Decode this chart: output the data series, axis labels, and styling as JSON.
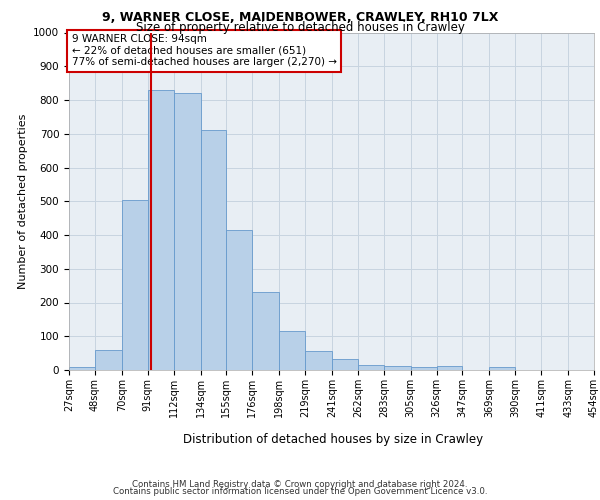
{
  "title1": "9, WARNER CLOSE, MAIDENBOWER, CRAWLEY, RH10 7LX",
  "title2": "Size of property relative to detached houses in Crawley",
  "xlabel": "Distribution of detached houses by size in Crawley",
  "ylabel": "Number of detached properties",
  "footer1": "Contains HM Land Registry data © Crown copyright and database right 2024.",
  "footer2": "Contains public sector information licensed under the Open Government Licence v3.0.",
  "annotation_line1": "9 WARNER CLOSE: 94sqm",
  "annotation_line2": "← 22% of detached houses are smaller (651)",
  "annotation_line3": "77% of semi-detached houses are larger (2,270) →",
  "bar_values": [
    8,
    58,
    505,
    830,
    820,
    710,
    415,
    230,
    115,
    55,
    32,
    15,
    12,
    8,
    12,
    0,
    8,
    0,
    0,
    0
  ],
  "bin_edges": [
    27,
    48,
    70,
    91,
    112,
    134,
    155,
    176,
    198,
    219,
    241,
    262,
    283,
    305,
    326,
    347,
    369,
    390,
    411,
    433,
    454
  ],
  "bar_color": "#b8d0e8",
  "bar_edge_color": "#6699cc",
  "vline_color": "#cc0000",
  "vline_x": 94,
  "annotation_box_color": "#cc0000",
  "grid_color": "#c8d4e0",
  "background_color": "#e8eef4",
  "ylim": [
    0,
    1000
  ],
  "yticks": [
    0,
    100,
    200,
    300,
    400,
    500,
    600,
    700,
    800,
    900,
    1000
  ]
}
